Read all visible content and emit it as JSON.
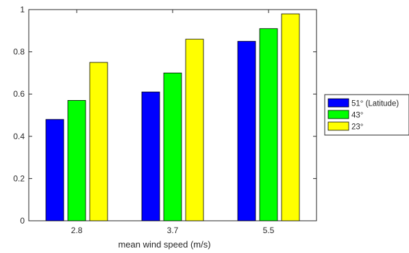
{
  "chart_data": {
    "type": "bar",
    "categories": [
      "2.8",
      "3.7",
      "5.5"
    ],
    "series": [
      {
        "name": "51° (Latitude)",
        "color": "#0000ff",
        "values": [
          0.48,
          0.61,
          0.85
        ]
      },
      {
        "name": "43°",
        "color": "#00ff00",
        "values": [
          0.57,
          0.7,
          0.91
        ]
      },
      {
        "name": "23°",
        "color": "#ffff00",
        "values": [
          0.75,
          0.86,
          0.98
        ]
      }
    ],
    "title": "",
    "xlabel": "mean wind speed (m/s)",
    "ylabel": "",
    "ylim": [
      0,
      1
    ],
    "yticks": [
      "0",
      "0.2",
      "0.4",
      "0.6",
      "0.8",
      "1"
    ],
    "grid": false,
    "legend_position": "outside-right"
  }
}
